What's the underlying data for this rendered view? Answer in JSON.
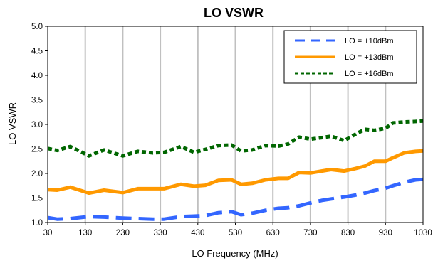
{
  "chart_data": {
    "type": "line",
    "title": "LO VSWR",
    "xlabel": "LO Frequency (MHz)",
    "ylabel": "LO VSWR",
    "xlim": [
      30,
      1030
    ],
    "ylim": [
      1.0,
      5.0
    ],
    "x_ticks": [
      30,
      130,
      230,
      330,
      430,
      530,
      630,
      730,
      830,
      930,
      1030
    ],
    "y_ticks": [
      1.0,
      1.5,
      2.0,
      2.5,
      3.0,
      3.5,
      4.0,
      4.5,
      5.0
    ],
    "x_tick_labels": [
      "30",
      "130",
      "230",
      "330",
      "430",
      "530",
      "630",
      "730",
      "830",
      "930",
      "1030"
    ],
    "y_tick_labels": [
      "1.0",
      "1.5",
      "2.0",
      "2.5",
      "3.0",
      "3.5",
      "4.0",
      "4.5",
      "5.0"
    ],
    "grid": true,
    "legend_position": "top-right",
    "x": [
      30,
      55,
      90,
      140,
      180,
      230,
      270,
      310,
      340,
      385,
      420,
      450,
      485,
      520,
      545,
      575,
      610,
      645,
      670,
      700,
      730,
      760,
      785,
      820,
      850,
      875,
      900,
      930,
      950,
      980,
      1010,
      1030
    ],
    "series": [
      {
        "name": "LO = +10dBm",
        "color": "#3366ff",
        "dash": "long",
        "values": [
          1.1,
          1.07,
          1.08,
          1.12,
          1.11,
          1.09,
          1.08,
          1.07,
          1.07,
          1.12,
          1.13,
          1.14,
          1.2,
          1.22,
          1.16,
          1.19,
          1.25,
          1.29,
          1.3,
          1.34,
          1.4,
          1.45,
          1.48,
          1.52,
          1.56,
          1.6,
          1.65,
          1.7,
          1.75,
          1.82,
          1.87,
          1.88
        ]
      },
      {
        "name": "LO = +13dBm",
        "color": "#ff9900",
        "dash": "solid",
        "values": [
          1.67,
          1.66,
          1.72,
          1.6,
          1.66,
          1.61,
          1.69,
          1.69,
          1.69,
          1.78,
          1.74,
          1.76,
          1.86,
          1.87,
          1.78,
          1.8,
          1.87,
          1.9,
          1.9,
          2.02,
          2.01,
          2.05,
          2.08,
          2.05,
          2.1,
          2.15,
          2.25,
          2.25,
          2.32,
          2.42,
          2.45,
          2.46
        ]
      },
      {
        "name": "LO = +16dBm",
        "color": "#006600",
        "dash": "short",
        "values": [
          2.51,
          2.47,
          2.55,
          2.36,
          2.48,
          2.36,
          2.45,
          2.42,
          2.43,
          2.55,
          2.43,
          2.49,
          2.57,
          2.58,
          2.46,
          2.48,
          2.57,
          2.56,
          2.6,
          2.74,
          2.7,
          2.73,
          2.76,
          2.67,
          2.8,
          2.9,
          2.88,
          2.92,
          3.03,
          3.05,
          3.06,
          3.07
        ]
      }
    ]
  }
}
